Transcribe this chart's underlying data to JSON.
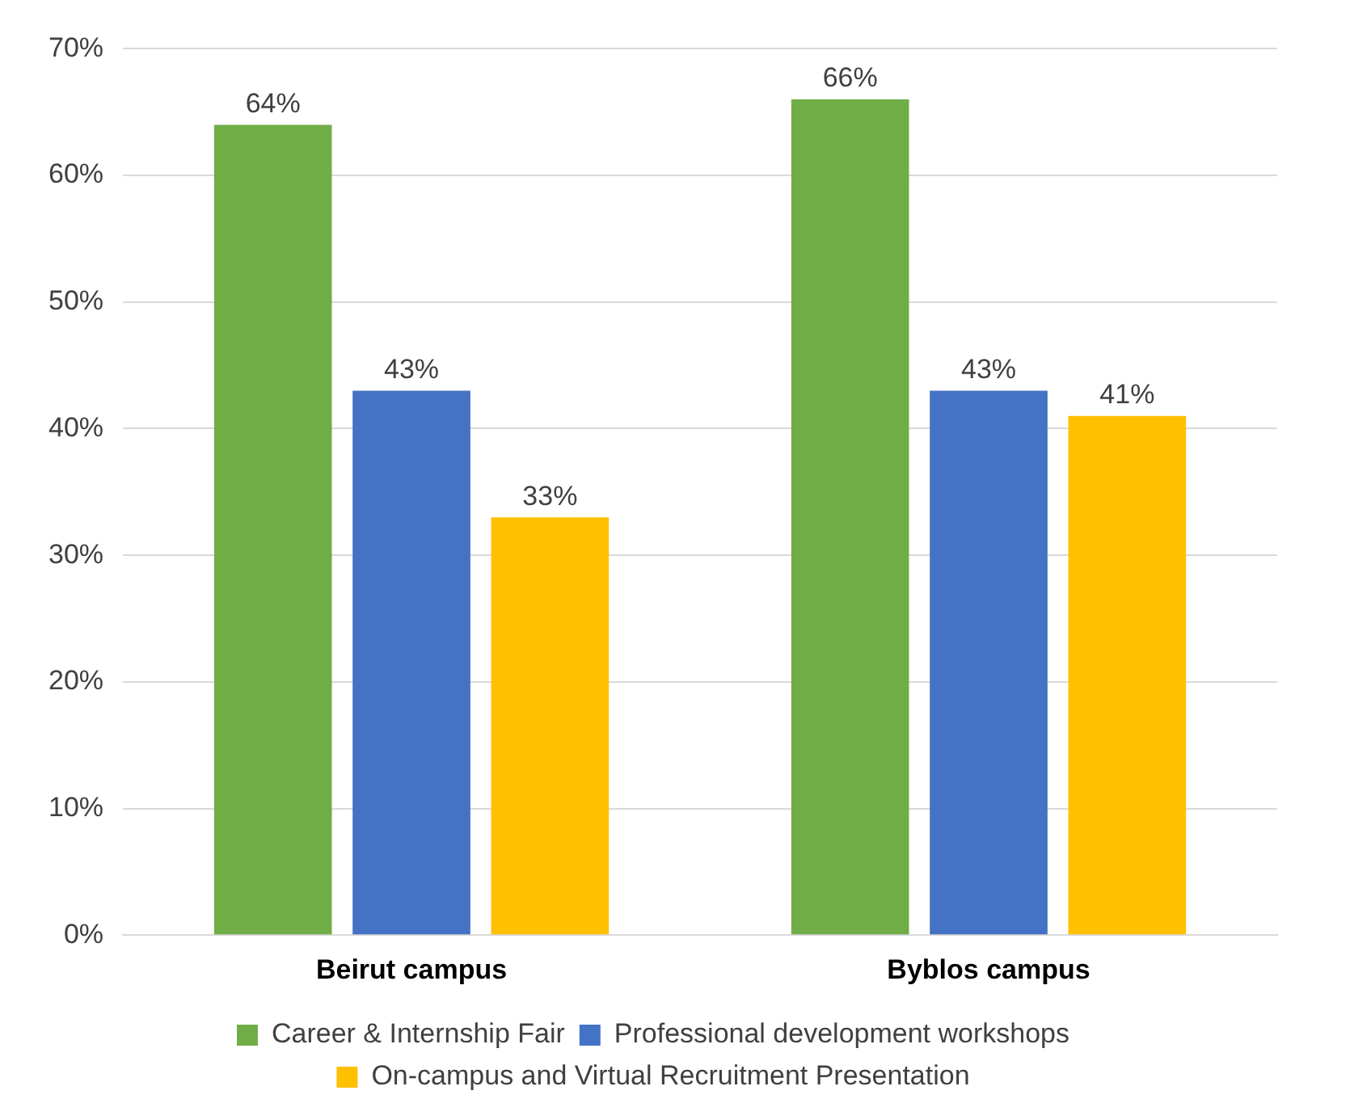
{
  "chart_data": {
    "type": "bar",
    "categories": [
      "Beirut campus",
      "Byblos campus"
    ],
    "series": [
      {
        "name": "Career & Internship Fair",
        "color": "#70ad47",
        "values": [
          64,
          66
        ],
        "value_labels": [
          "64%",
          "66%"
        ]
      },
      {
        "name": "Professional development workshops",
        "color": "#4472c4",
        "values": [
          43,
          43
        ],
        "value_labels": [
          "43%",
          "43%"
        ]
      },
      {
        "name": "On-campus and Virtual Recruitment Presentation",
        "color": "#ffc000",
        "values": [
          33,
          41
        ],
        "value_labels": [
          "33%",
          "41%"
        ]
      }
    ],
    "ylim": [
      0,
      70
    ],
    "yticks": [
      {
        "value": 0,
        "label": "0%"
      },
      {
        "value": 10,
        "label": "10%"
      },
      {
        "value": 20,
        "label": "20%"
      },
      {
        "value": 30,
        "label": "30%"
      },
      {
        "value": 40,
        "label": "40%"
      },
      {
        "value": 50,
        "label": "50%"
      },
      {
        "value": 60,
        "label": "60%"
      },
      {
        "value": 70,
        "label": "70%"
      }
    ],
    "grid": "y",
    "legend": "bottom"
  }
}
